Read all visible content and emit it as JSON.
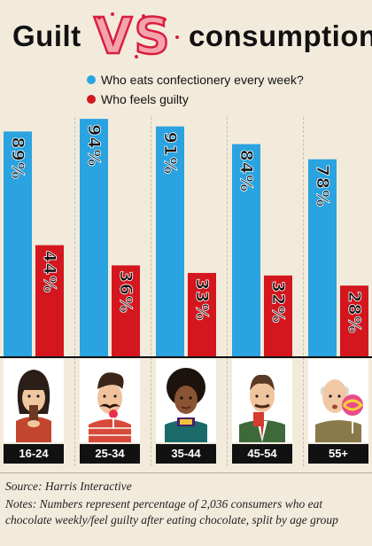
{
  "title": {
    "left": "Guilt",
    "vs": "VS",
    "right": "consumption"
  },
  "legend": [
    {
      "label": "Who eats confectionery every week?",
      "color": "#2aa3e0"
    },
    {
      "label": "Who feels guilty",
      "color": "#d4161f"
    }
  ],
  "chart_data": {
    "type": "bar",
    "categories": [
      "16-24",
      "25-34",
      "35-44",
      "45-54",
      "55+"
    ],
    "series": [
      {
        "name": "Who eats confectionery every week?",
        "values": [
          89,
          94,
          91,
          84,
          78
        ],
        "labels": [
          "89%",
          "94%",
          "91%",
          "84%",
          "78%"
        ],
        "color": "#2aa3e0"
      },
      {
        "name": "Who feels guilty",
        "values": [
          44,
          36,
          33,
          32,
          28
        ],
        "labels": [
          "44%",
          "36%",
          "33%",
          "32%",
          "28%"
        ],
        "color": "#d4161f"
      }
    ]
  },
  "faces": [
    "woman-with-bangs-eating-chocolate",
    "mustached-man-with-lollipop",
    "woman-with-curly-hair-chocolate-bar",
    "man-with-tie-holding-chocolate",
    "bald-man-with-big-lollipop"
  ],
  "source": "Source: Harris Interactive",
  "notes": "Notes: Numbers represent percentage of 2,036 consumers who eat chocolate weekly/feel guilty after eating chocolate, split by age group"
}
